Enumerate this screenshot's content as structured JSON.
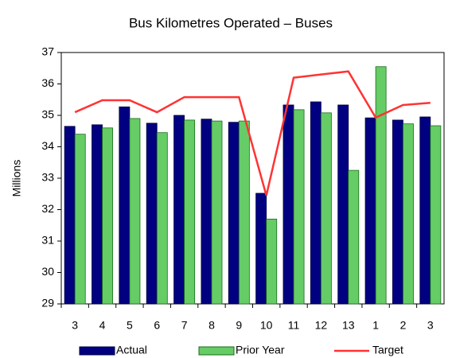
{
  "chart_data": {
    "type": "bar_line",
    "title": "Bus Kilometres Operated – Buses",
    "ylabel": "Millions",
    "categories": [
      "3",
      "4",
      "5",
      "6",
      "7",
      "8",
      "9",
      "10",
      "11",
      "12",
      "13",
      "1",
      "2",
      "3"
    ],
    "series": [
      {
        "name": "Actual",
        "type": "bar",
        "color": "#000080",
        "values": [
          34.65,
          34.7,
          35.27,
          34.75,
          35.0,
          34.88,
          34.78,
          32.52,
          35.33,
          35.43,
          35.33,
          34.92,
          34.85,
          34.95
        ]
      },
      {
        "name": "Prior Year",
        "type": "bar",
        "color": "#66cc66",
        "values": [
          34.4,
          34.6,
          34.9,
          34.45,
          34.85,
          34.82,
          34.82,
          31.7,
          35.18,
          35.08,
          33.25,
          36.55,
          34.73,
          34.67
        ]
      },
      {
        "name": "Target",
        "type": "line",
        "color": "#ff3333",
        "values": [
          35.1,
          35.48,
          35.48,
          35.1,
          35.58,
          35.58,
          35.58,
          32.45,
          36.2,
          36.3,
          36.4,
          34.93,
          35.33,
          35.4
        ]
      }
    ],
    "ylim": [
      29,
      37
    ],
    "yticks": [
      29,
      30,
      31,
      32,
      33,
      34,
      35,
      36,
      37
    ],
    "grid": false,
    "legend": "bottom"
  }
}
